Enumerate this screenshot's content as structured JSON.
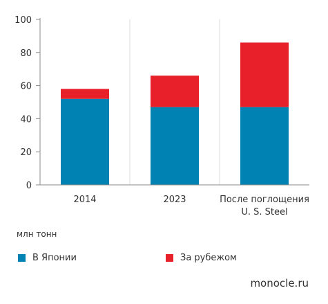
{
  "chart_data": {
    "type": "bar",
    "stacked": true,
    "categories": [
      "2014",
      "2023",
      "После поглощения\nU. S. Steel"
    ],
    "series": [
      {
        "name": "В Японии",
        "color": "#0083b3",
        "values": [
          52,
          47,
          47
        ]
      },
      {
        "name": "За рубежом",
        "color": "#e8202a",
        "values": [
          6,
          19,
          39
        ]
      }
    ],
    "ylim": [
      0,
      100
    ],
    "yticks": [
      0,
      20,
      40,
      60,
      80,
      100
    ],
    "grid": "vertical-category-separators",
    "unit_label": "млн тонн",
    "legend_position": "bottom"
  },
  "source": "monocle.ru",
  "colors": {
    "axis": "#888888",
    "grid": "#d9d9d9"
  }
}
